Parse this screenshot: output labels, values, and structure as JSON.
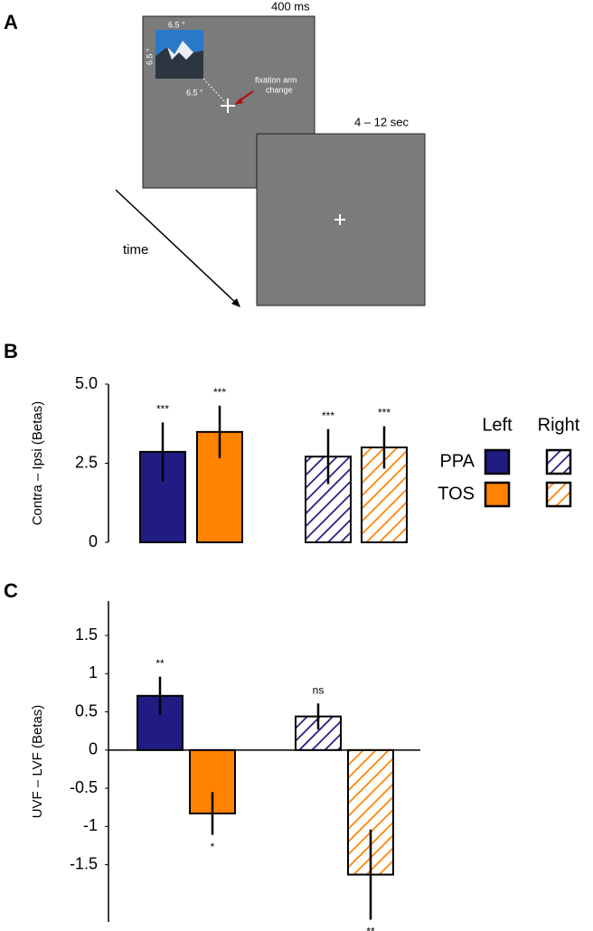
{
  "figure_labels": [
    "A",
    "B",
    "C"
  ],
  "diagram": {
    "frame1_duration": "400 ms",
    "frame2_duration": "4 – 12 sec",
    "image_width": "6.5 °",
    "image_height": "6.5 °",
    "eccentricity": "6.5 °",
    "fixation_note": [
      "fixation arm",
      "change"
    ],
    "time_label": "time"
  },
  "chart_data": [
    {
      "type": "bar",
      "ylabel": "Contra – Ipsi (Betas)",
      "categories": [
        "Left",
        "Right"
      ],
      "hatch": [
        false,
        true
      ],
      "legend": true,
      "series": [
        {
          "name": "PPA",
          "color": "#211c84",
          "values": [
            2.86,
            2.71
          ],
          "errors": [
            0.93,
            0.87
          ],
          "annotations": [
            "***",
            "***"
          ]
        },
        {
          "name": "TOS",
          "color": "#ff8200",
          "values": [
            3.49,
            3.0
          ],
          "errors": [
            0.83,
            0.67
          ],
          "annotations": [
            "***",
            "***"
          ]
        }
      ],
      "ylim": [
        0,
        5
      ],
      "yticks": [
        0,
        2.5,
        {
          "value": 5,
          "label": "5.0"
        }
      ]
    },
    {
      "type": "bar",
      "ylabel": "UVF – LVF (Betas)",
      "hatch": [
        false,
        true
      ],
      "series": [
        {
          "name": "PPA",
          "color": "#211c84",
          "values": [
            0.71,
            0.44
          ],
          "errors": [
            0.25,
            0.17
          ],
          "annotations": [
            "**",
            "ns"
          ]
        },
        {
          "name": "TOS",
          "color": "#ff8200",
          "values": [
            -0.83,
            -1.63
          ],
          "errors": [
            0.28,
            0.59
          ],
          "annotations": [
            "*",
            "**"
          ]
        }
      ],
      "ylim": [
        -2.25,
        1.95
      ],
      "yticks": [
        1.5,
        1,
        0.5,
        0,
        -0.5,
        -1,
        -1.5
      ]
    }
  ]
}
